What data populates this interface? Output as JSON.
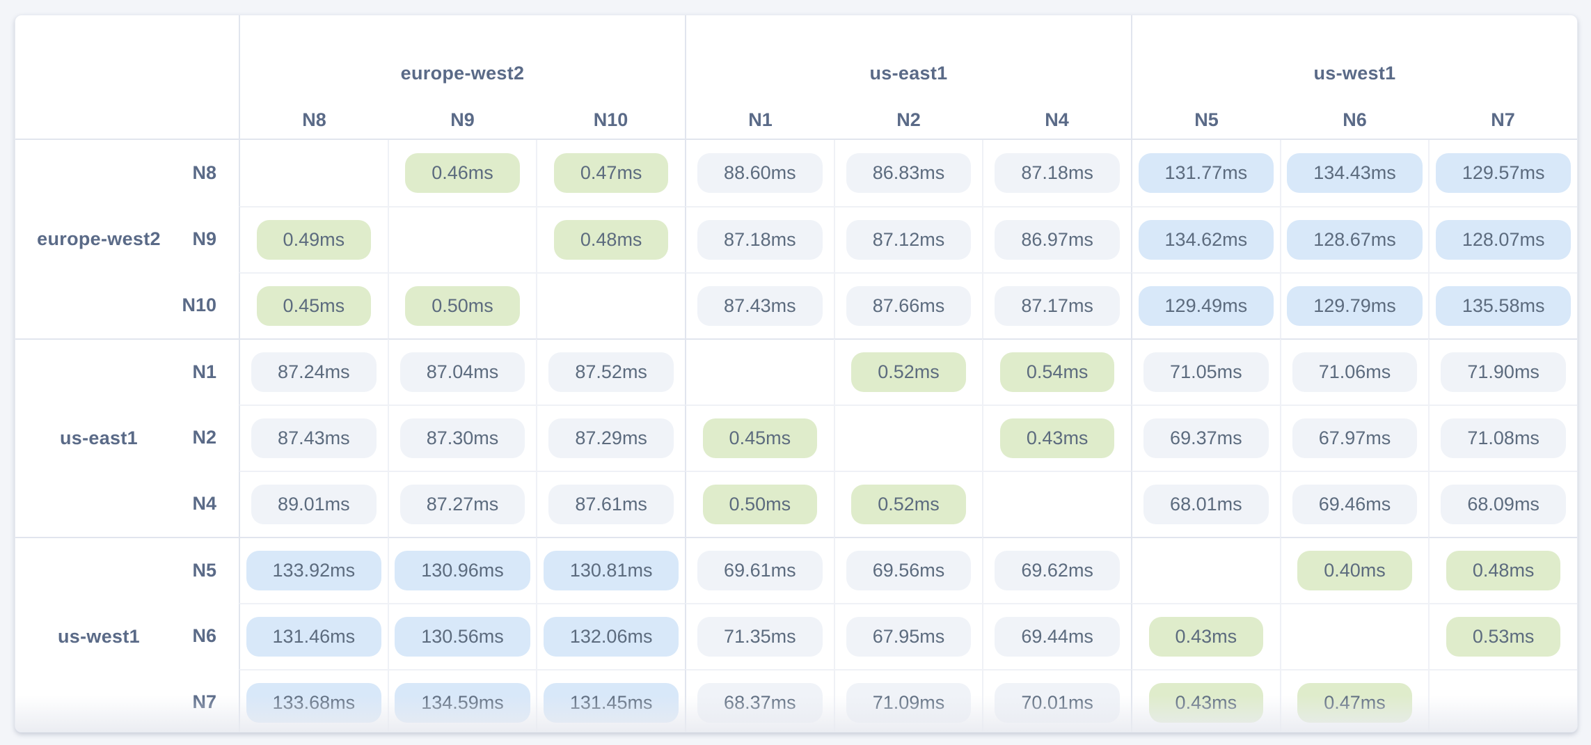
{
  "palette": {
    "page_bg": "#f3f5f9",
    "card_bg": "#ffffff",
    "border_strong": "#e1e5ee",
    "border_light": "#eff1f6",
    "label_color": "#5a6a87",
    "value_color": "#5c6b7e",
    "pill_green_bg": "#dfeccb",
    "pill_blue_bg": "#d8e8f9",
    "pill_gray_bg": "#f0f3f8"
  },
  "matrix": {
    "unit": "ms",
    "column_groups": [
      {
        "region": "europe-west2",
        "nodes": [
          "N8",
          "N9",
          "N10"
        ]
      },
      {
        "region": "us-east1",
        "nodes": [
          "N1",
          "N2",
          "N4"
        ]
      },
      {
        "region": "us-west1",
        "nodes": [
          "N5",
          "N6",
          "N7"
        ]
      }
    ],
    "row_groups": [
      {
        "region": "europe-west2",
        "rows": [
          {
            "node": "N8",
            "cells": [
              null,
              {
                "value": "0.46ms",
                "tone": "green"
              },
              {
                "value": "0.47ms",
                "tone": "green"
              },
              {
                "value": "88.60ms",
                "tone": "gray"
              },
              {
                "value": "86.83ms",
                "tone": "gray"
              },
              {
                "value": "87.18ms",
                "tone": "gray"
              },
              {
                "value": "131.77ms",
                "tone": "blue"
              },
              {
                "value": "134.43ms",
                "tone": "blue"
              },
              {
                "value": "129.57ms",
                "tone": "blue"
              }
            ]
          },
          {
            "node": "N9",
            "cells": [
              {
                "value": "0.49ms",
                "tone": "green"
              },
              null,
              {
                "value": "0.48ms",
                "tone": "green"
              },
              {
                "value": "87.18ms",
                "tone": "gray"
              },
              {
                "value": "87.12ms",
                "tone": "gray"
              },
              {
                "value": "86.97ms",
                "tone": "gray"
              },
              {
                "value": "134.62ms",
                "tone": "blue"
              },
              {
                "value": "128.67ms",
                "tone": "blue"
              },
              {
                "value": "128.07ms",
                "tone": "blue"
              }
            ]
          },
          {
            "node": "N10",
            "cells": [
              {
                "value": "0.45ms",
                "tone": "green"
              },
              {
                "value": "0.50ms",
                "tone": "green"
              },
              null,
              {
                "value": "87.43ms",
                "tone": "gray"
              },
              {
                "value": "87.66ms",
                "tone": "gray"
              },
              {
                "value": "87.17ms",
                "tone": "gray"
              },
              {
                "value": "129.49ms",
                "tone": "blue"
              },
              {
                "value": "129.79ms",
                "tone": "blue"
              },
              {
                "value": "135.58ms",
                "tone": "blue"
              }
            ]
          }
        ]
      },
      {
        "region": "us-east1",
        "rows": [
          {
            "node": "N1",
            "cells": [
              {
                "value": "87.24ms",
                "tone": "gray"
              },
              {
                "value": "87.04ms",
                "tone": "gray"
              },
              {
                "value": "87.52ms",
                "tone": "gray"
              },
              null,
              {
                "value": "0.52ms",
                "tone": "green"
              },
              {
                "value": "0.54ms",
                "tone": "green"
              },
              {
                "value": "71.05ms",
                "tone": "gray"
              },
              {
                "value": "71.06ms",
                "tone": "gray"
              },
              {
                "value": "71.90ms",
                "tone": "gray"
              }
            ]
          },
          {
            "node": "N2",
            "cells": [
              {
                "value": "87.43ms",
                "tone": "gray"
              },
              {
                "value": "87.30ms",
                "tone": "gray"
              },
              {
                "value": "87.29ms",
                "tone": "gray"
              },
              {
                "value": "0.45ms",
                "tone": "green"
              },
              null,
              {
                "value": "0.43ms",
                "tone": "green"
              },
              {
                "value": "69.37ms",
                "tone": "gray"
              },
              {
                "value": "67.97ms",
                "tone": "gray"
              },
              {
                "value": "71.08ms",
                "tone": "gray"
              }
            ]
          },
          {
            "node": "N4",
            "cells": [
              {
                "value": "89.01ms",
                "tone": "gray"
              },
              {
                "value": "87.27ms",
                "tone": "gray"
              },
              {
                "value": "87.61ms",
                "tone": "gray"
              },
              {
                "value": "0.50ms",
                "tone": "green"
              },
              {
                "value": "0.52ms",
                "tone": "green"
              },
              null,
              {
                "value": "68.01ms",
                "tone": "gray"
              },
              {
                "value": "69.46ms",
                "tone": "gray"
              },
              {
                "value": "68.09ms",
                "tone": "gray"
              }
            ]
          }
        ]
      },
      {
        "region": "us-west1",
        "rows": [
          {
            "node": "N5",
            "cells": [
              {
                "value": "133.92ms",
                "tone": "blue"
              },
              {
                "value": "130.96ms",
                "tone": "blue"
              },
              {
                "value": "130.81ms",
                "tone": "blue"
              },
              {
                "value": "69.61ms",
                "tone": "gray"
              },
              {
                "value": "69.56ms",
                "tone": "gray"
              },
              {
                "value": "69.62ms",
                "tone": "gray"
              },
              null,
              {
                "value": "0.40ms",
                "tone": "green"
              },
              {
                "value": "0.48ms",
                "tone": "green"
              }
            ]
          },
          {
            "node": "N6",
            "cells": [
              {
                "value": "131.46ms",
                "tone": "blue"
              },
              {
                "value": "130.56ms",
                "tone": "blue"
              },
              {
                "value": "132.06ms",
                "tone": "blue"
              },
              {
                "value": "71.35ms",
                "tone": "gray"
              },
              {
                "value": "67.95ms",
                "tone": "gray"
              },
              {
                "value": "69.44ms",
                "tone": "gray"
              },
              {
                "value": "0.43ms",
                "tone": "green"
              },
              null,
              {
                "value": "0.53ms",
                "tone": "green"
              }
            ]
          },
          {
            "node": "N7",
            "cells": [
              {
                "value": "133.68ms",
                "tone": "blue"
              },
              {
                "value": "134.59ms",
                "tone": "blue"
              },
              {
                "value": "131.45ms",
                "tone": "blue"
              },
              {
                "value": "68.37ms",
                "tone": "gray"
              },
              {
                "value": "71.09ms",
                "tone": "gray"
              },
              {
                "value": "70.01ms",
                "tone": "gray"
              },
              {
                "value": "0.43ms",
                "tone": "green"
              },
              {
                "value": "0.47ms",
                "tone": "green"
              },
              null
            ]
          }
        ]
      }
    ]
  }
}
